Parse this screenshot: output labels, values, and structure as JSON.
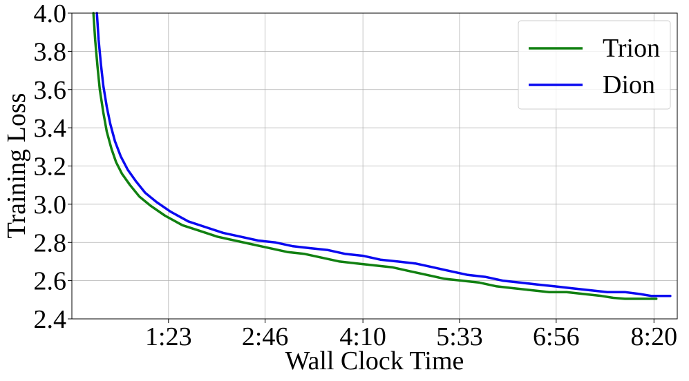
{
  "chart_data": {
    "type": "line",
    "title": "",
    "xlabel": "Wall Clock Time",
    "ylabel": "Training Loss",
    "xlim": [
      0,
      520
    ],
    "ylim": [
      2.4,
      4.0
    ],
    "x_ticks": [
      {
        "value": 83,
        "label": "1:23"
      },
      {
        "value": 166,
        "label": "2:46"
      },
      {
        "value": 250,
        "label": "4:10"
      },
      {
        "value": 333,
        "label": "5:33"
      },
      {
        "value": 416,
        "label": "6:56"
      },
      {
        "value": 500,
        "label": "8:20"
      }
    ],
    "y_ticks": [
      {
        "value": 2.4,
        "label": "2.4"
      },
      {
        "value": 2.6,
        "label": "2.6"
      },
      {
        "value": 2.8,
        "label": "2.8"
      },
      {
        "value": 3.0,
        "label": "3.0"
      },
      {
        "value": 3.2,
        "label": "3.2"
      },
      {
        "value": 3.4,
        "label": "3.4"
      },
      {
        "value": 3.6,
        "label": "3.6"
      },
      {
        "value": 3.8,
        "label": "3.8"
      },
      {
        "value": 4.0,
        "label": "4.0"
      }
    ],
    "grid": true,
    "legend_position": "top-right",
    "series": [
      {
        "name": "Trion",
        "color": "#118011",
        "points": [
          [
            18.5,
            4.0
          ],
          [
            20,
            3.86
          ],
          [
            22,
            3.72
          ],
          [
            24,
            3.6
          ],
          [
            27,
            3.48
          ],
          [
            30,
            3.38
          ],
          [
            34,
            3.29
          ],
          [
            38,
            3.22
          ],
          [
            43,
            3.16
          ],
          [
            50,
            3.1
          ],
          [
            58,
            3.04
          ],
          [
            68,
            2.99
          ],
          [
            80,
            2.94
          ],
          [
            95,
            2.89
          ],
          [
            110,
            2.86
          ],
          [
            125,
            2.83
          ],
          [
            140,
            2.81
          ],
          [
            155,
            2.79
          ],
          [
            170,
            2.77
          ],
          [
            185,
            2.75
          ],
          [
            200,
            2.74
          ],
          [
            215,
            2.72
          ],
          [
            230,
            2.7
          ],
          [
            245,
            2.69
          ],
          [
            260,
            2.68
          ],
          [
            275,
            2.67
          ],
          [
            290,
            2.65
          ],
          [
            305,
            2.63
          ],
          [
            320,
            2.61
          ],
          [
            335,
            2.6
          ],
          [
            350,
            2.59
          ],
          [
            365,
            2.57
          ],
          [
            380,
            2.56
          ],
          [
            395,
            2.55
          ],
          [
            410,
            2.54
          ],
          [
            425,
            2.54
          ],
          [
            440,
            2.53
          ],
          [
            455,
            2.52
          ],
          [
            465,
            2.51
          ],
          [
            475,
            2.505
          ],
          [
            485,
            2.505
          ],
          [
            495,
            2.505
          ],
          [
            502,
            2.505
          ]
        ]
      },
      {
        "name": "Dion",
        "color": "#0a0af0",
        "points": [
          [
            21.5,
            4.0
          ],
          [
            23,
            3.86
          ],
          [
            25,
            3.73
          ],
          [
            27,
            3.62
          ],
          [
            30,
            3.51
          ],
          [
            33,
            3.42
          ],
          [
            37,
            3.33
          ],
          [
            42,
            3.25
          ],
          [
            48,
            3.18
          ],
          [
            55,
            3.12
          ],
          [
            63,
            3.06
          ],
          [
            73,
            3.01
          ],
          [
            85,
            2.96
          ],
          [
            100,
            2.91
          ],
          [
            115,
            2.88
          ],
          [
            130,
            2.85
          ],
          [
            145,
            2.83
          ],
          [
            160,
            2.81
          ],
          [
            175,
            2.8
          ],
          [
            190,
            2.78
          ],
          [
            205,
            2.77
          ],
          [
            220,
            2.76
          ],
          [
            235,
            2.74
          ],
          [
            250,
            2.73
          ],
          [
            265,
            2.71
          ],
          [
            280,
            2.7
          ],
          [
            295,
            2.69
          ],
          [
            310,
            2.67
          ],
          [
            325,
            2.65
          ],
          [
            340,
            2.63
          ],
          [
            355,
            2.62
          ],
          [
            370,
            2.6
          ],
          [
            385,
            2.59
          ],
          [
            400,
            2.58
          ],
          [
            415,
            2.57
          ],
          [
            430,
            2.56
          ],
          [
            445,
            2.55
          ],
          [
            460,
            2.54
          ],
          [
            475,
            2.54
          ],
          [
            488,
            2.53
          ],
          [
            498,
            2.52
          ],
          [
            508,
            2.52
          ],
          [
            514,
            2.52
          ]
        ]
      }
    ]
  }
}
